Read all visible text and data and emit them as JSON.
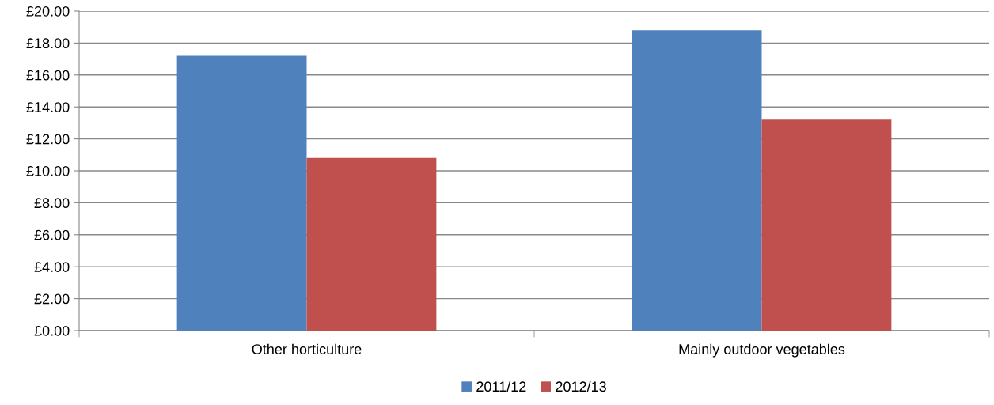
{
  "chart_data": {
    "type": "bar",
    "categories": [
      "Other horticulture",
      "Mainly outdoor vegetables"
    ],
    "series": [
      {
        "name": "2011/12",
        "color": "#4f81bd",
        "values": [
          17.2,
          18.8
        ]
      },
      {
        "name": "2012/13",
        "color": "#c0504d",
        "values": [
          10.8,
          13.2
        ]
      }
    ],
    "ylim": [
      0,
      20
    ],
    "yticks": [
      {
        "value": 0,
        "label": "£0.00"
      },
      {
        "value": 2,
        "label": "£2.00"
      },
      {
        "value": 4,
        "label": "£4.00"
      },
      {
        "value": 6,
        "label": "£6.00"
      },
      {
        "value": 8,
        "label": "£8.00"
      },
      {
        "value": 10,
        "label": "£10.00"
      },
      {
        "value": 12,
        "label": "£12.00"
      },
      {
        "value": 14,
        "label": "£14.00"
      },
      {
        "value": 16,
        "label": "£16.00"
      },
      {
        "value": 18,
        "label": "£18.00"
      },
      {
        "value": 20,
        "label": "£20.00"
      }
    ],
    "grid": "y",
    "legend": "bottom"
  }
}
